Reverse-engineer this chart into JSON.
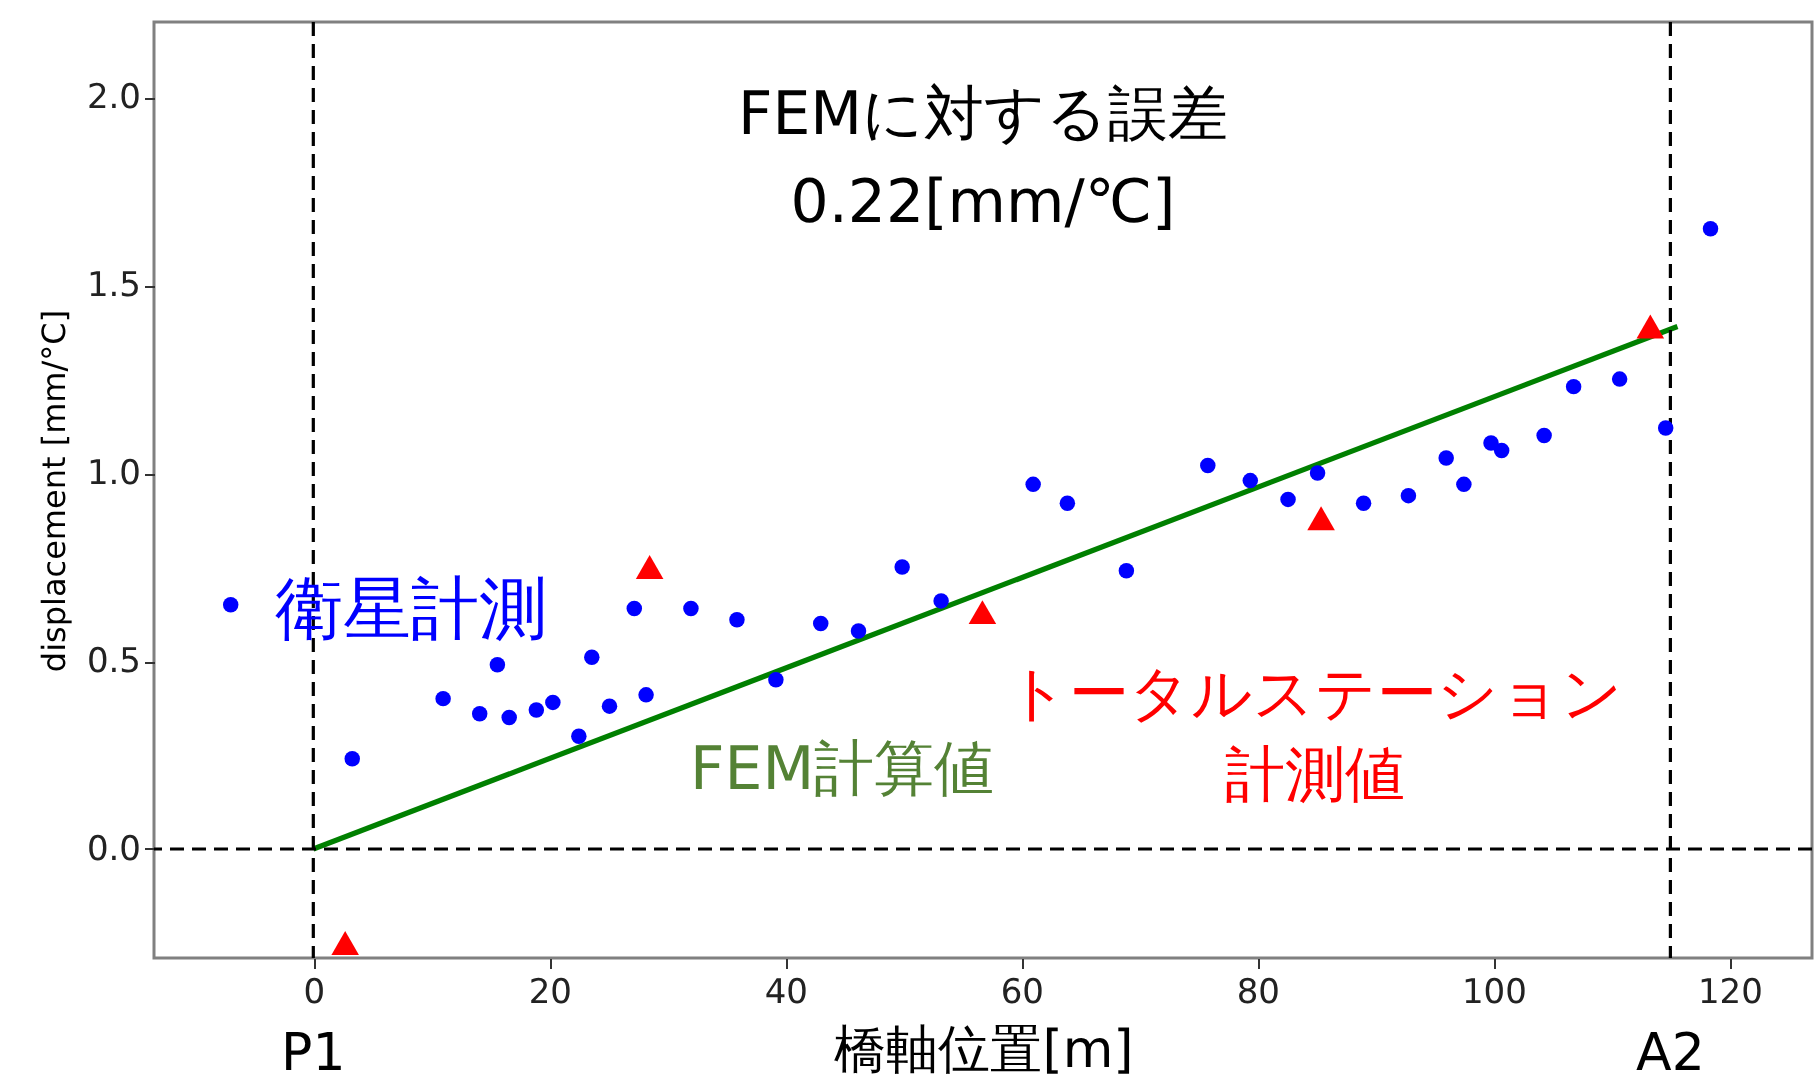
{
  "chart_data": {
    "type": "scatter",
    "xlabel": "橋軸位置[m]",
    "ylabel": "displacement [mm/°C]",
    "xlim": [
      -13.5,
      127
    ],
    "ylim": [
      -0.29,
      2.2
    ],
    "xticks": [
      0,
      20,
      40,
      60,
      80,
      100,
      120
    ],
    "yticks": [
      {
        "value": 0,
        "label": "0.0"
      },
      0.5,
      {
        "value": 1,
        "label": "1.0"
      },
      1.5,
      {
        "value": 2,
        "label": "2.0"
      }
    ],
    "grid": false,
    "series": [
      {
        "name": "衛星計測",
        "marker": "circle",
        "color": "#0000ff",
        "x": [
          -7.0,
          3.3,
          11.0,
          14.1,
          15.6,
          16.6,
          18.9,
          20.3,
          22.5,
          23.6,
          25.1,
          27.2,
          28.2,
          32.0,
          35.9,
          39.2,
          43.0,
          46.2,
          49.9,
          53.2,
          61.0,
          63.9,
          68.9,
          75.8,
          79.4,
          82.6,
          85.1,
          89.0,
          92.8,
          96.0,
          97.5,
          99.8,
          100.7,
          104.3,
          106.8,
          110.7,
          114.6,
          118.4
        ],
        "values": [
          0.65,
          0.24,
          0.4,
          0.36,
          0.49,
          0.35,
          0.37,
          0.39,
          0.3,
          0.51,
          0.38,
          0.64,
          0.41,
          0.64,
          0.61,
          0.45,
          0.6,
          0.58,
          0.75,
          0.66,
          0.97,
          0.92,
          0.74,
          1.02,
          0.98,
          0.93,
          1.0,
          0.92,
          0.94,
          1.04,
          0.97,
          1.08,
          1.06,
          1.1,
          1.23,
          1.25,
          1.12,
          1.65
        ]
      },
      {
        "name": "FEM計算値",
        "type": "line",
        "marker": "none",
        "line_style": "solid",
        "color": "#008000",
        "x": [
          0,
          115.6
        ],
        "values": [
          0,
          1.39
        ]
      },
      {
        "name": "トータルステーション計測値",
        "marker": "triangle",
        "color": "#ff0000",
        "x": [
          2.7,
          28.5,
          56.7,
          85.4,
          113.3
        ],
        "values": [
          -0.25,
          0.75,
          0.63,
          0.88,
          1.39
        ]
      }
    ],
    "ref_lines": [
      {
        "axis": "x",
        "value": 0,
        "label": "P1",
        "color": "#000000",
        "line_style": "dashed"
      },
      {
        "axis": "x",
        "value": 115,
        "label": "A2",
        "color": "#000000",
        "line_style": "dashed"
      },
      {
        "axis": "y",
        "value": 0,
        "color": "#000000",
        "line_style": "dashed"
      }
    ],
    "annotations": [
      "FEMに対する誤差\n0.22[mm/℃]"
    ]
  }
}
